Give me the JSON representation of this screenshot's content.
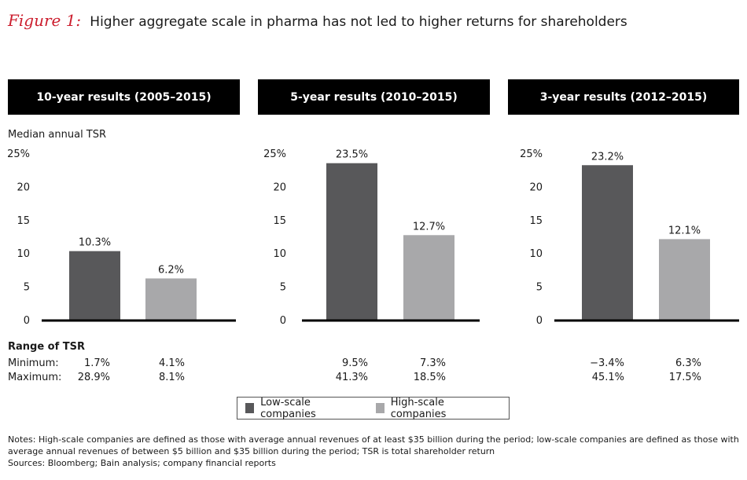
{
  "figure": {
    "label": "Figure 1:",
    "title": "Higher aggregate scale in pharma has not led to higher returns for shareholders"
  },
  "colors": {
    "low_scale": "#58585a",
    "high_scale": "#a8a8aa",
    "title_accent": "#cc1e2e"
  },
  "y_axis_title": "Median annual TSR",
  "range": {
    "title": "Range of TSR",
    "min_label": "Minimum:",
    "max_label": "Maximum:"
  },
  "legend": [
    {
      "label": "Low-scale companies",
      "color": "#58585a"
    },
    {
      "label": "High-scale companies",
      "color": "#a8a8aa"
    }
  ],
  "notes": "Notes: High-scale companies are defined as those with average annual revenues of at least $35 billion during the period; low-scale companies are defined as those with average annual revenues of between $5 billion and $35 billion during the period; TSR is total shareholder return",
  "sources": "Sources: Bloomberg; Bain analysis; company financial reports",
  "chart_data": [
    {
      "type": "bar",
      "title": "10-year results (2005–2015)",
      "categories": [
        "Low-scale companies",
        "High-scale companies"
      ],
      "values": [
        10.3,
        6.2
      ],
      "data_labels": [
        "10.3%",
        "6.2%"
      ],
      "ylim": [
        0,
        25
      ],
      "yticks": [
        "0",
        "5",
        "10",
        "15",
        "20",
        "25%"
      ],
      "range_min": [
        "1.7%",
        "4.1%"
      ],
      "range_max": [
        "28.9%",
        "8.1%"
      ]
    },
    {
      "type": "bar",
      "title": "5-year results (2010–2015)",
      "categories": [
        "Low-scale companies",
        "High-scale companies"
      ],
      "values": [
        23.5,
        12.7
      ],
      "data_labels": [
        "23.5%",
        "12.7%"
      ],
      "ylim": [
        0,
        25
      ],
      "yticks": [
        "0",
        "5",
        "10",
        "15",
        "20",
        "25%"
      ],
      "range_min": [
        "9.5%",
        "7.3%"
      ],
      "range_max": [
        "41.3%",
        "18.5%"
      ]
    },
    {
      "type": "bar",
      "title": "3-year results (2012–2015)",
      "categories": [
        "Low-scale companies",
        "High-scale companies"
      ],
      "values": [
        23.2,
        12.1
      ],
      "data_labels": [
        "23.2%",
        "12.1%"
      ],
      "ylim": [
        0,
        25
      ],
      "yticks": [
        "0",
        "5",
        "10",
        "15",
        "20",
        "25%"
      ],
      "range_min": [
        "−3.4%",
        "6.3%"
      ],
      "range_max": [
        "45.1%",
        "17.5%"
      ]
    }
  ]
}
